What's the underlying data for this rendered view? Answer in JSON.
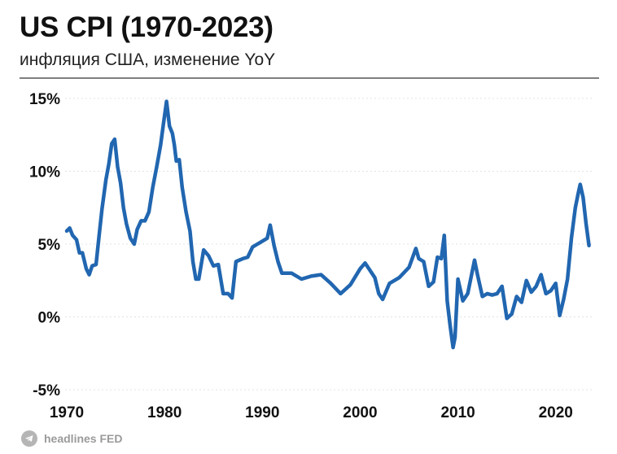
{
  "header": {
    "title": "US CPI (1970-2023)",
    "subtitle": "инфляция США, изменение YoY"
  },
  "footer": {
    "source_text": "headlines FED",
    "icon": "telegram-icon"
  },
  "colors": {
    "line": "#2166b0",
    "grid": "#e3e3e3",
    "rule": "#7f7f7f"
  },
  "chart_data": {
    "type": "line",
    "title": "US CPI (1970-2023)",
    "subtitle": "инфляция США, изменение YoY",
    "xlabel": "",
    "ylabel": "",
    "xlim": [
      1970,
      2023.6
    ],
    "ylim": [
      -5,
      15
    ],
    "grid": true,
    "legend": "none",
    "y_ticks": [
      15,
      10,
      5,
      0,
      -5
    ],
    "y_tick_labels": [
      "15%",
      "10%",
      "5%",
      "0%",
      "-5%"
    ],
    "x_ticks": [
      1970,
      1980,
      1990,
      2000,
      2010,
      2020
    ],
    "x_tick_labels": [
      "1970",
      "1980",
      "1990",
      "2000",
      "2010",
      "2020"
    ],
    "series": [
      {
        "name": "",
        "x": [
          1970.0,
          1970.3,
          1970.6,
          1971.0,
          1971.3,
          1971.6,
          1972.0,
          1972.3,
          1972.6,
          1973.0,
          1973.3,
          1973.6,
          1974.0,
          1974.3,
          1974.6,
          1974.9,
          1975.2,
          1975.5,
          1975.8,
          1976.1,
          1976.5,
          1976.9,
          1977.2,
          1977.6,
          1978.0,
          1978.4,
          1978.8,
          1979.2,
          1979.6,
          1979.9,
          1980.2,
          1980.5,
          1980.8,
          1981.0,
          1981.2,
          1981.5,
          1981.8,
          1982.2,
          1982.6,
          1982.9,
          1983.2,
          1983.5,
          1984.0,
          1984.5,
          1985.0,
          1985.5,
          1986.0,
          1986.5,
          1986.9,
          1987.3,
          1988.0,
          1988.5,
          1989.0,
          1989.5,
          1990.0,
          1990.5,
          1990.8,
          1991.2,
          1991.6,
          1992.0,
          1993.0,
          1994.0,
          1995.0,
          1996.0,
          1997.0,
          1998.0,
          1999.0,
          2000.0,
          2000.5,
          2001.0,
          2001.5,
          2001.9,
          2002.3,
          2003.0,
          2004.0,
          2005.0,
          2005.7,
          2006.0,
          2006.5,
          2007.0,
          2007.5,
          2007.9,
          2008.3,
          2008.6,
          2008.9,
          2009.2,
          2009.5,
          2009.7,
          2010.0,
          2010.5,
          2011.0,
          2011.7,
          2012.0,
          2012.5,
          2013.0,
          2013.5,
          2014.0,
          2014.5,
          2015.0,
          2015.5,
          2016.0,
          2016.5,
          2017.0,
          2017.5,
          2018.0,
          2018.5,
          2019.0,
          2019.5,
          2020.0,
          2020.4,
          2020.8,
          2021.2,
          2021.6,
          2022.0,
          2022.3,
          2022.5,
          2022.8,
          2023.1,
          2023.4
        ],
        "values": [
          5.9,
          6.1,
          5.6,
          5.3,
          4.4,
          4.4,
          3.3,
          2.9,
          3.5,
          3.6,
          5.5,
          7.4,
          9.4,
          10.5,
          11.9,
          12.2,
          10.3,
          9.2,
          7.5,
          6.4,
          5.4,
          5.0,
          6.0,
          6.6,
          6.6,
          7.2,
          8.9,
          10.3,
          11.8,
          13.3,
          14.8,
          13.1,
          12.6,
          11.8,
          10.7,
          10.8,
          8.9,
          7.2,
          5.9,
          3.8,
          2.6,
          2.6,
          4.6,
          4.2,
          3.5,
          3.6,
          1.6,
          1.6,
          1.3,
          3.8,
          4.0,
          4.1,
          4.8,
          5.0,
          5.2,
          5.4,
          6.3,
          4.9,
          3.8,
          3.0,
          3.0,
          2.6,
          2.8,
          2.9,
          2.3,
          1.6,
          2.2,
          3.3,
          3.7,
          3.2,
          2.7,
          1.6,
          1.2,
          2.3,
          2.7,
          3.4,
          4.7,
          4.0,
          3.8,
          2.1,
          2.4,
          4.1,
          4.0,
          5.6,
          1.1,
          -0.6,
          -2.1,
          -1.4,
          2.6,
          1.1,
          1.6,
          3.9,
          2.9,
          1.4,
          1.6,
          1.5,
          1.6,
          2.1,
          -0.1,
          0.2,
          1.4,
          1.0,
          2.5,
          1.7,
          2.1,
          2.9,
          1.6,
          1.8,
          2.3,
          0.1,
          1.2,
          2.6,
          5.4,
          7.5,
          8.5,
          9.1,
          8.2,
          6.4,
          4.9
        ]
      }
    ]
  }
}
